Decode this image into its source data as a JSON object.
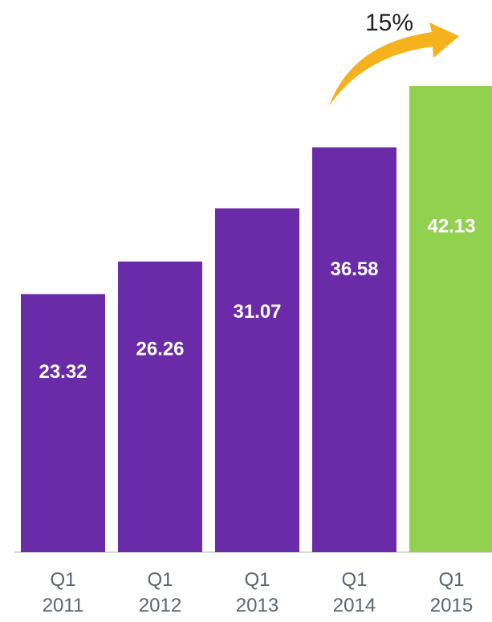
{
  "chart_data": {
    "type": "bar",
    "categories": [
      [
        "Q1",
        "2011"
      ],
      [
        "Q1",
        "2012"
      ],
      [
        "Q1",
        "2013"
      ],
      [
        "Q1",
        "2014"
      ],
      [
        "Q1",
        "2015"
      ]
    ],
    "values": [
      23.32,
      26.26,
      31.07,
      36.58,
      42.13
    ],
    "value_labels": [
      "23.32",
      "26.26",
      "31.07",
      "36.58",
      "42.13"
    ],
    "bar_colors": [
      "#6a2ba8",
      "#6a2ba8",
      "#6a2ba8",
      "#6a2ba8",
      "#92d050"
    ],
    "ylim": [
      0,
      42.13
    ],
    "title": "",
    "xlabel": "",
    "ylabel": "",
    "grid": false,
    "legend": "none",
    "annotation": {
      "text": "15%",
      "icon": "curved-arrow-up-right-icon",
      "color": "#f5b21c"
    }
  }
}
